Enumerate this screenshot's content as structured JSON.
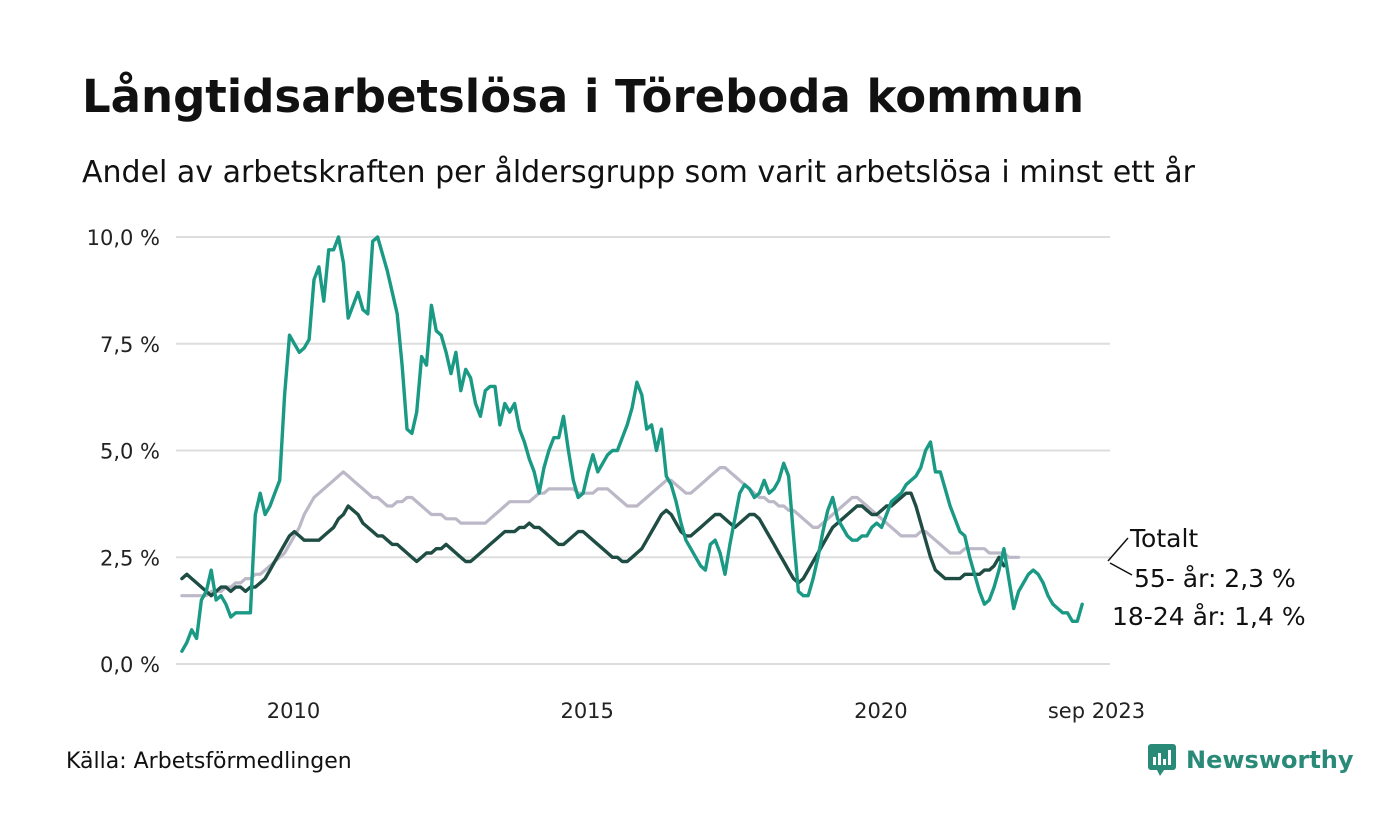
{
  "title": "Långtidsarbetslösa i Töreboda kommun",
  "subtitle": "Andel av arbetskraften per åldersgrupp som varit arbetslösa i minst ett år",
  "source": "Källa: Arbetsförmedlingen",
  "brand": "Newsworthy",
  "colors": {
    "total": "#bdb8c7",
    "age55": "#1f4d44",
    "age18_24": "#1a9985",
    "grid": "#dddddd",
    "brand": "#2a8a78"
  },
  "chart_data": {
    "type": "line",
    "title": "Långtidsarbetslösa i Töreboda kommun",
    "subtitle": "Andel av arbetskraften per åldersgrupp som varit arbetslösa i minst ett år",
    "xlabel": "",
    "ylabel": "",
    "x_start": 2008.1,
    "x_step": 0.0833,
    "ylim": [
      0,
      10
    ],
    "xlim": [
      2008.0,
      2023.9
    ],
    "yticks": [
      {
        "value": 0,
        "label": "0,0 %"
      },
      {
        "value": 2.5,
        "label": "2,5 %"
      },
      {
        "value": 5,
        "label": "5,0 %"
      },
      {
        "value": 7.5,
        "label": "7,5 %"
      },
      {
        "value": 10,
        "label": "10,0 %"
      }
    ],
    "xticks": [
      {
        "value": 2010,
        "label": "2010"
      },
      {
        "value": 2015,
        "label": "2015"
      },
      {
        "value": 2020,
        "label": "2020"
      },
      {
        "value": 2023.67,
        "label": "sep 2023"
      }
    ],
    "grid": true,
    "series": [
      {
        "name": "Totalt",
        "label": "Totalt",
        "color": "#bdb8c7",
        "values": [
          1.6,
          1.6,
          1.6,
          1.6,
          1.6,
          1.6,
          1.7,
          1.7,
          1.7,
          1.8,
          1.8,
          1.9,
          1.9,
          2.0,
          2.0,
          2.1,
          2.1,
          2.2,
          2.3,
          2.4,
          2.5,
          2.6,
          2.8,
          3.0,
          3.2,
          3.5,
          3.7,
          3.9,
          4.0,
          4.1,
          4.2,
          4.3,
          4.4,
          4.5,
          4.4,
          4.3,
          4.2,
          4.1,
          4.0,
          3.9,
          3.9,
          3.8,
          3.7,
          3.7,
          3.8,
          3.8,
          3.9,
          3.9,
          3.8,
          3.7,
          3.6,
          3.5,
          3.5,
          3.5,
          3.4,
          3.4,
          3.4,
          3.3,
          3.3,
          3.3,
          3.3,
          3.3,
          3.3,
          3.4,
          3.5,
          3.6,
          3.7,
          3.8,
          3.8,
          3.8,
          3.8,
          3.8,
          3.9,
          4.0,
          4.0,
          4.1,
          4.1,
          4.1,
          4.1,
          4.1,
          4.1,
          4.0,
          4.0,
          4.0,
          4.0,
          4.1,
          4.1,
          4.1,
          4.0,
          3.9,
          3.8,
          3.7,
          3.7,
          3.7,
          3.8,
          3.9,
          4.0,
          4.1,
          4.2,
          4.3,
          4.3,
          4.2,
          4.1,
          4.0,
          4.0,
          4.1,
          4.2,
          4.3,
          4.4,
          4.5,
          4.6,
          4.6,
          4.5,
          4.4,
          4.3,
          4.2,
          4.1,
          4.0,
          3.9,
          3.9,
          3.8,
          3.8,
          3.7,
          3.7,
          3.6,
          3.6,
          3.5,
          3.4,
          3.3,
          3.2,
          3.2,
          3.3,
          3.4,
          3.5,
          3.6,
          3.7,
          3.8,
          3.9,
          3.9,
          3.8,
          3.7,
          3.6,
          3.5,
          3.4,
          3.3,
          3.2,
          3.1,
          3.0,
          3.0,
          3.0,
          3.0,
          3.1,
          3.1,
          3.0,
          2.9,
          2.8,
          2.7,
          2.6,
          2.6,
          2.6,
          2.7,
          2.7,
          2.7,
          2.7,
          2.7,
          2.6,
          2.6,
          2.6,
          2.6,
          2.5,
          2.5,
          2.5
        ]
      },
      {
        "name": "55- år",
        "label": "55- år: 2,3 %",
        "color": "#1f4d44",
        "values": [
          2.0,
          2.1,
          2.0,
          1.9,
          1.8,
          1.7,
          1.6,
          1.7,
          1.8,
          1.8,
          1.7,
          1.8,
          1.8,
          1.7,
          1.8,
          1.8,
          1.9,
          2.0,
          2.2,
          2.4,
          2.6,
          2.8,
          3.0,
          3.1,
          3.0,
          2.9,
          2.9,
          2.9,
          2.9,
          3.0,
          3.1,
          3.2,
          3.4,
          3.5,
          3.7,
          3.6,
          3.5,
          3.3,
          3.2,
          3.1,
          3.0,
          3.0,
          2.9,
          2.8,
          2.8,
          2.7,
          2.6,
          2.5,
          2.4,
          2.5,
          2.6,
          2.6,
          2.7,
          2.7,
          2.8,
          2.7,
          2.6,
          2.5,
          2.4,
          2.4,
          2.5,
          2.6,
          2.7,
          2.8,
          2.9,
          3.0,
          3.1,
          3.1,
          3.1,
          3.2,
          3.2,
          3.3,
          3.2,
          3.2,
          3.1,
          3.0,
          2.9,
          2.8,
          2.8,
          2.9,
          3.0,
          3.1,
          3.1,
          3.0,
          2.9,
          2.8,
          2.7,
          2.6,
          2.5,
          2.5,
          2.4,
          2.4,
          2.5,
          2.6,
          2.7,
          2.9,
          3.1,
          3.3,
          3.5,
          3.6,
          3.5,
          3.3,
          3.1,
          3.0,
          3.0,
          3.1,
          3.2,
          3.3,
          3.4,
          3.5,
          3.5,
          3.4,
          3.3,
          3.2,
          3.3,
          3.4,
          3.5,
          3.5,
          3.4,
          3.2,
          3.0,
          2.8,
          2.6,
          2.4,
          2.2,
          2.0,
          1.9,
          2.0,
          2.2,
          2.4,
          2.6,
          2.8,
          3.0,
          3.2,
          3.3,
          3.4,
          3.5,
          3.6,
          3.7,
          3.7,
          3.6,
          3.5,
          3.5,
          3.6,
          3.7,
          3.7,
          3.8,
          3.9,
          4.0,
          4.0,
          3.7,
          3.3,
          2.9,
          2.5,
          2.2,
          2.1,
          2.0,
          2.0,
          2.0,
          2.0,
          2.1,
          2.1,
          2.1,
          2.1,
          2.2,
          2.2,
          2.3,
          2.5,
          2.3
        ]
      },
      {
        "name": "18-24 år",
        "label": "18-24 år: 1,4 %",
        "color": "#1a9985",
        "values": [
          0.3,
          0.5,
          0.8,
          0.6,
          1.5,
          1.7,
          2.2,
          1.5,
          1.6,
          1.4,
          1.1,
          1.2,
          1.2,
          1.2,
          1.2,
          3.5,
          4.0,
          3.5,
          3.7,
          4.0,
          4.3,
          6.3,
          7.7,
          7.5,
          7.3,
          7.4,
          7.6,
          9.0,
          9.3,
          8.5,
          9.7,
          9.7,
          10.0,
          9.4,
          8.1,
          8.4,
          8.7,
          8.3,
          8.2,
          9.9,
          10.0,
          9.6,
          9.2,
          8.7,
          8.2,
          7.0,
          5.5,
          5.4,
          5.9,
          7.2,
          7.0,
          8.4,
          7.8,
          7.7,
          7.3,
          6.8,
          7.3,
          6.4,
          6.9,
          6.7,
          6.1,
          5.8,
          6.4,
          6.5,
          6.5,
          5.6,
          6.1,
          5.9,
          6.1,
          5.5,
          5.2,
          4.8,
          4.5,
          4.0,
          4.6,
          5.0,
          5.3,
          5.3,
          5.8,
          5.0,
          4.3,
          3.9,
          4.0,
          4.5,
          4.9,
          4.5,
          4.7,
          4.9,
          5.0,
          5.0,
          5.3,
          5.6,
          6.0,
          6.6,
          6.3,
          5.5,
          5.6,
          5.0,
          5.5,
          4.4,
          4.2,
          3.8,
          3.3,
          2.9,
          2.7,
          2.5,
          2.3,
          2.2,
          2.8,
          2.9,
          2.6,
          2.1,
          2.8,
          3.4,
          4.0,
          4.2,
          4.1,
          3.9,
          4.0,
          4.3,
          4.0,
          4.1,
          4.3,
          4.7,
          4.4,
          3.0,
          1.7,
          1.6,
          1.6,
          2.0,
          2.5,
          3.1,
          3.6,
          3.9,
          3.4,
          3.2,
          3.0,
          2.9,
          2.9,
          3.0,
          3.0,
          3.2,
          3.3,
          3.2,
          3.5,
          3.8,
          3.9,
          4.0,
          4.2,
          4.3,
          4.4,
          4.6,
          5.0,
          5.2,
          4.5,
          4.5,
          4.1,
          3.7,
          3.4,
          3.1,
          3.0,
          2.5,
          2.1,
          1.7,
          1.4,
          1.5,
          1.8,
          2.2,
          2.7,
          2.0,
          1.3,
          1.7,
          1.9,
          2.1,
          2.2,
          2.1,
          1.9,
          1.6,
          1.4,
          1.3,
          1.2,
          1.2,
          1.0,
          1.0,
          1.4
        ]
      }
    ],
    "annotations": [
      {
        "series": "Totalt",
        "text": "Totalt"
      },
      {
        "series": "55- år",
        "text": "55- år: 2,3 %"
      },
      {
        "series": "18-24 år",
        "text": "18-24 år: 1,4 %"
      }
    ]
  }
}
